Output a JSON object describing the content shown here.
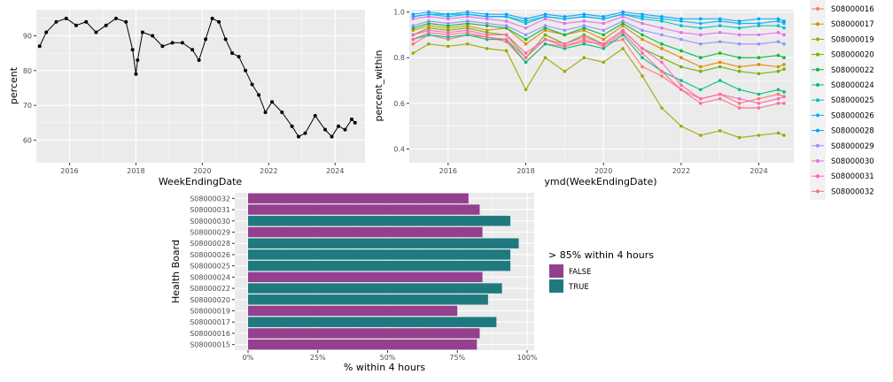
{
  "chart_data": [
    {
      "type": "line",
      "xlabel": "WeekEndingDate",
      "ylabel": "percent",
      "xlim": [
        2015.0,
        2024.9
      ],
      "ylim": [
        53.5,
        97.5
      ],
      "x_ticks": [
        2016,
        2018,
        2020,
        2022,
        2024
      ],
      "y_ticks": [
        60,
        70,
        80,
        90
      ],
      "grid": true,
      "series": [
        {
          "color": "#000000",
          "x": [
            2015.1,
            2015.3,
            2015.6,
            2015.9,
            2016.2,
            2016.5,
            2016.8,
            2017.1,
            2017.4,
            2017.7,
            2017.9,
            2018.0,
            2018.05,
            2018.2,
            2018.5,
            2018.8,
            2019.1,
            2019.4,
            2019.7,
            2019.9,
            2020.1,
            2020.3,
            2020.5,
            2020.7,
            2020.9,
            2021.1,
            2021.3,
            2021.5,
            2021.7,
            2021.9,
            2022.1,
            2022.4,
            2022.7,
            2022.9,
            2023.1,
            2023.4,
            2023.7,
            2023.9,
            2024.1,
            2024.3,
            2024.5,
            2024.6
          ],
          "y": [
            87,
            91,
            94,
            95,
            93,
            94,
            91,
            93,
            95,
            94,
            86,
            79,
            83,
            91,
            90,
            87,
            88,
            88,
            86,
            83,
            89,
            95,
            94,
            89,
            85,
            84,
            80,
            76,
            73,
            68,
            71,
            68,
            64,
            61,
            62,
            67,
            63,
            61,
            64,
            63,
            66,
            65
          ]
        }
      ]
    },
    {
      "type": "line",
      "xlabel": "ymd(WeekEndingDate)",
      "ylabel": "percent_within",
      "xlim": [
        2015.0,
        2024.9
      ],
      "ylim": [
        0.34,
        1.01
      ],
      "x_ticks": [
        2016,
        2018,
        2020,
        2022,
        2024
      ],
      "y_ticks": [
        0.4,
        0.6,
        0.8,
        1.0
      ],
      "grid": true,
      "legend_position": "right",
      "x": [
        2015.1,
        2015.5,
        2016.0,
        2016.5,
        2017.0,
        2017.5,
        2018.0,
        2018.5,
        2019.0,
        2019.5,
        2020.0,
        2020.5,
        2021.0,
        2021.5,
        2022.0,
        2022.5,
        2023.0,
        2023.5,
        2024.0,
        2024.5,
        2024.65
      ],
      "series": [
        {
          "name": "S08000016",
          "color": "#F8766D",
          "values": [
            0.86,
            0.9,
            0.88,
            0.9,
            0.89,
            0.87,
            0.78,
            0.86,
            0.85,
            0.87,
            0.86,
            0.88,
            0.76,
            0.72,
            0.66,
            0.62,
            0.64,
            0.6,
            0.62,
            0.64,
            0.63
          ]
        },
        {
          "name": "S08000017",
          "color": "#E18A00",
          "values": [
            0.92,
            0.94,
            0.93,
            0.94,
            0.92,
            0.93,
            0.86,
            0.92,
            0.9,
            0.92,
            0.88,
            0.94,
            0.88,
            0.84,
            0.8,
            0.76,
            0.78,
            0.76,
            0.77,
            0.76,
            0.77
          ]
        },
        {
          "name": "S08000019",
          "color": "#A3A500",
          "values": [
            0.82,
            0.86,
            0.85,
            0.86,
            0.84,
            0.83,
            0.66,
            0.8,
            0.74,
            0.8,
            0.78,
            0.84,
            0.72,
            0.58,
            0.5,
            0.46,
            0.48,
            0.45,
            0.46,
            0.47,
            0.46
          ]
        },
        {
          "name": "S08000020",
          "color": "#6BB100",
          "values": [
            0.9,
            0.93,
            0.92,
            0.93,
            0.91,
            0.9,
            0.8,
            0.9,
            0.86,
            0.9,
            0.86,
            0.92,
            0.84,
            0.8,
            0.76,
            0.74,
            0.76,
            0.74,
            0.73,
            0.74,
            0.75
          ]
        },
        {
          "name": "S08000022",
          "color": "#00BA38",
          "values": [
            0.93,
            0.95,
            0.94,
            0.95,
            0.94,
            0.93,
            0.88,
            0.93,
            0.9,
            0.93,
            0.9,
            0.95,
            0.9,
            0.86,
            0.83,
            0.8,
            0.82,
            0.8,
            0.8,
            0.81,
            0.8
          ]
        },
        {
          "name": "S08000024",
          "color": "#00BF7D",
          "values": [
            0.88,
            0.9,
            0.89,
            0.9,
            0.88,
            0.88,
            0.78,
            0.86,
            0.84,
            0.86,
            0.84,
            0.9,
            0.8,
            0.74,
            0.7,
            0.66,
            0.7,
            0.66,
            0.64,
            0.66,
            0.65
          ]
        },
        {
          "name": "S08000025",
          "color": "#00BFC4",
          "values": [
            0.98,
            0.99,
            0.99,
            0.99,
            0.98,
            0.98,
            0.95,
            0.98,
            0.97,
            0.98,
            0.97,
            0.99,
            0.97,
            0.96,
            0.94,
            0.93,
            0.94,
            0.93,
            0.94,
            0.94,
            0.93
          ]
        },
        {
          "name": "S08000026",
          "color": "#00B4EF",
          "values": [
            0.98,
            0.99,
            0.98,
            0.99,
            0.98,
            0.98,
            0.96,
            0.98,
            0.97,
            0.98,
            0.97,
            0.99,
            0.98,
            0.97,
            0.96,
            0.95,
            0.96,
            0.95,
            0.95,
            0.96,
            0.95
          ]
        },
        {
          "name": "S08000028",
          "color": "#00A5FF",
          "values": [
            0.99,
            1.0,
            0.99,
            1.0,
            0.99,
            0.99,
            0.97,
            0.99,
            0.98,
            0.99,
            0.98,
            1.0,
            0.99,
            0.98,
            0.97,
            0.97,
            0.97,
            0.96,
            0.97,
            0.97,
            0.96
          ]
        },
        {
          "name": "S08000029",
          "color": "#9590FF",
          "values": [
            0.94,
            0.96,
            0.95,
            0.96,
            0.95,
            0.94,
            0.9,
            0.94,
            0.92,
            0.94,
            0.92,
            0.96,
            0.92,
            0.9,
            0.88,
            0.86,
            0.87,
            0.86,
            0.86,
            0.87,
            0.86
          ]
        },
        {
          "name": "S08000030",
          "color": "#E76BF3",
          "values": [
            0.97,
            0.98,
            0.97,
            0.98,
            0.97,
            0.96,
            0.93,
            0.97,
            0.95,
            0.96,
            0.95,
            0.98,
            0.95,
            0.93,
            0.91,
            0.9,
            0.91,
            0.9,
            0.9,
            0.91,
            0.9
          ]
        },
        {
          "name": "S08000031",
          "color": "#FF62BC",
          "values": [
            0.9,
            0.92,
            0.91,
            0.92,
            0.9,
            0.9,
            0.82,
            0.88,
            0.86,
            0.89,
            0.86,
            0.92,
            0.84,
            0.78,
            0.68,
            0.62,
            0.64,
            0.62,
            0.6,
            0.62,
            0.63
          ]
        },
        {
          "name": "S08000032",
          "color": "#FF6C91",
          "values": [
            0.88,
            0.91,
            0.9,
            0.91,
            0.89,
            0.88,
            0.8,
            0.88,
            0.85,
            0.88,
            0.85,
            0.91,
            0.82,
            0.74,
            0.66,
            0.6,
            0.62,
            0.58,
            0.58,
            0.6,
            0.6
          ]
        }
      ]
    },
    {
      "type": "bar",
      "orientation": "horizontal",
      "xlabel": "% within 4 hours",
      "ylabel": "Health Board",
      "xlim": [
        0,
        1
      ],
      "x_ticks": [
        "0%",
        "25%",
        "50%",
        "75%",
        "100%"
      ],
      "grid": true,
      "legend_title": "> 85% within 4 hours",
      "legend_position": "right",
      "legend": [
        {
          "label": "FALSE",
          "color": "#94408F"
        },
        {
          "label": "TRUE",
          "color": "#1F7A7F"
        }
      ],
      "categories": [
        "S08000032",
        "S08000031",
        "S08000030",
        "S08000029",
        "S08000028",
        "S08000026",
        "S08000025",
        "S08000024",
        "S08000022",
        "S08000020",
        "S08000019",
        "S08000017",
        "S08000016",
        "S08000015"
      ],
      "values": [
        0.79,
        0.83,
        0.94,
        0.84,
        0.97,
        0.94,
        0.94,
        0.84,
        0.91,
        0.86,
        0.75,
        0.89,
        0.83,
        0.82
      ],
      "group": [
        "FALSE",
        "FALSE",
        "TRUE",
        "FALSE",
        "TRUE",
        "TRUE",
        "TRUE",
        "FALSE",
        "TRUE",
        "TRUE",
        "FALSE",
        "TRUE",
        "FALSE",
        "FALSE"
      ]
    }
  ]
}
